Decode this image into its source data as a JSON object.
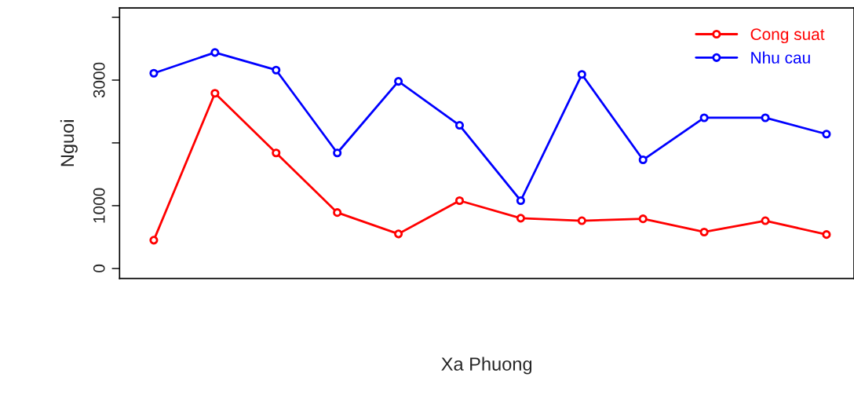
{
  "chart_data": {
    "type": "line",
    "xlabel": "Xa Phuong",
    "ylabel": "Nguoi",
    "categories": [
      null,
      null,
      null,
      null,
      null,
      null,
      null,
      null,
      null,
      null,
      null,
      null
    ],
    "series": [
      {
        "name": "Cong suat",
        "color": "#ff0000",
        "values": [
          450,
          2790,
          1840,
          890,
          550,
          1080,
          800,
          760,
          790,
          580,
          760,
          540
        ]
      },
      {
        "name": "Nhu cau",
        "color": "#0000ff",
        "values": [
          3110,
          3440,
          3160,
          1840,
          2980,
          2280,
          1080,
          3090,
          1730,
          2400,
          2400,
          2140
        ]
      }
    ],
    "ylim": [
      -160,
      4150
    ],
    "yticks": [
      0,
      1000,
      {
        "value": 2000,
        "label": null
      },
      3000,
      {
        "value": 4000,
        "label": null
      }
    ],
    "tick_labels": "y",
    "marker": "circle",
    "line_style": "solid",
    "grid": false,
    "legend": "top right"
  }
}
